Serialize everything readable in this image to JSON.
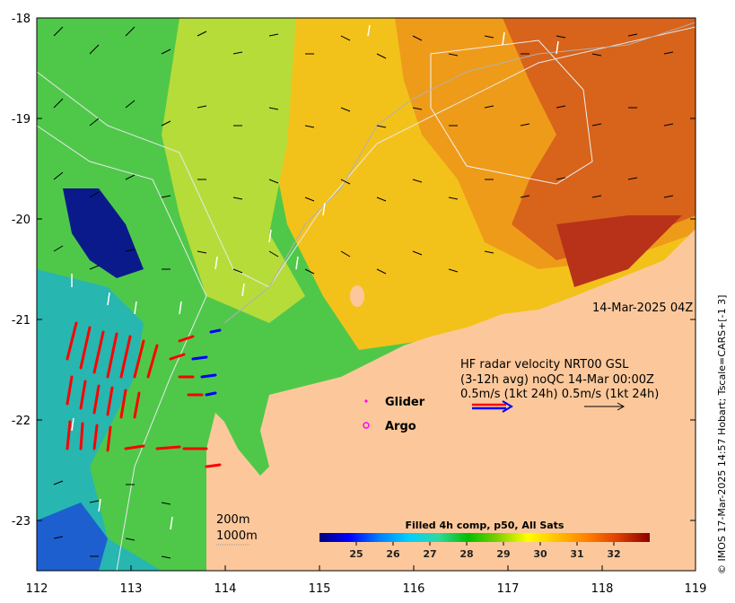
{
  "map": {
    "date_label": "14-Mar-2025 04Z",
    "credit": "© IMOS 17-Mar-2025 14:57 Hobart; Tscale=CARS+[-1 3]",
    "axes": {
      "lon_ticks": [
        "112",
        "113",
        "114",
        "115",
        "116",
        "117",
        "118",
        "119"
      ],
      "lat_ticks": [
        "-18",
        "-19",
        "-20",
        "-21",
        "-22",
        "-23"
      ],
      "lon_range": [
        112,
        119
      ],
      "lat_range": [
        -23.5,
        -18
      ]
    },
    "radar": {
      "line1": "HF radar velocity  NRT00 GSL",
      "line2": "(3-12h avg) noQC 14-Mar 00:00Z",
      "line3": "0.5m/s (1kt 24h)   0.5m/s (1kt 24h)"
    },
    "legend": {
      "glider": "Glider",
      "argo": "Argo",
      "glider_color": "#ff00ff",
      "argo_color": "#ff00ff"
    },
    "depth_labels": {
      "d200": "200m",
      "d1000": "1000m"
    },
    "colorbar": {
      "title": "Filled 4h comp, p50, All Sats",
      "ticks": [
        "25",
        "26",
        "27",
        "28",
        "29",
        "30",
        "31",
        "32"
      ],
      "range": [
        24.0,
        33.0
      ],
      "colors": [
        "#00007f",
        "#0000ff",
        "#007fff",
        "#00cfff",
        "#2fd8a0",
        "#00c000",
        "#7fd000",
        "#ffff00",
        "#ffc000",
        "#ff8000",
        "#e04000",
        "#8b0000"
      ]
    },
    "land_color": "#fcc89b",
    "arrow_colors": {
      "current": "#000000",
      "model": "#ffffff",
      "radar_a": "#ff0000",
      "radar_b": "#0000ff"
    }
  }
}
